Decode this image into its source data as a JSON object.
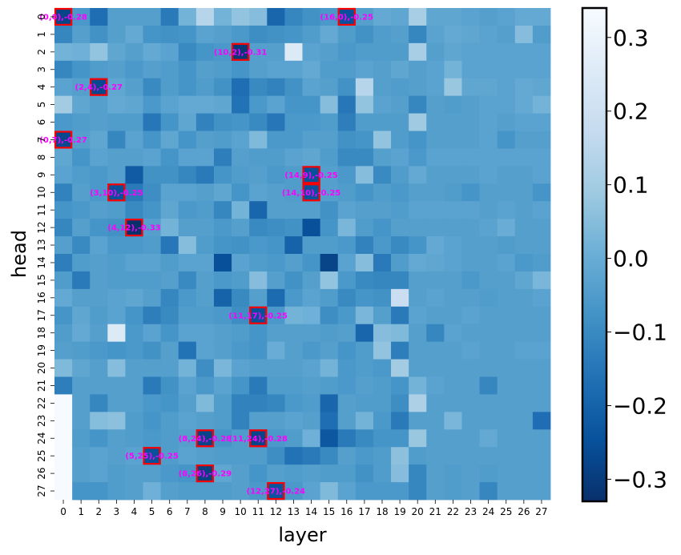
{
  "chart_data": {
    "type": "heatmap",
    "xlabel": "layer",
    "ylabel": "head",
    "n_layers": 28,
    "n_heads": 28,
    "x_ticks": [
      "0",
      "1",
      "2",
      "3",
      "4",
      "5",
      "6",
      "7",
      "8",
      "9",
      "10",
      "11",
      "12",
      "13",
      "14",
      "15",
      "16",
      "17",
      "18",
      "19",
      "20",
      "21",
      "22",
      "23",
      "24",
      "25",
      "26",
      "27"
    ],
    "y_ticks": [
      "0",
      "1",
      "2",
      "3",
      "4",
      "5",
      "6",
      "7",
      "8",
      "9",
      "10",
      "11",
      "12",
      "13",
      "14",
      "15",
      "16",
      "17",
      "18",
      "19",
      "20",
      "21",
      "22",
      "23",
      "24",
      "25",
      "26",
      "27"
    ],
    "vmin": -0.33,
    "vmax": 0.34,
    "colormap": "Blues_r",
    "colorbar_ticks": [
      {
        "value": 0.3,
        "label": "0.3"
      },
      {
        "value": 0.2,
        "label": "0.2"
      },
      {
        "value": 0.1,
        "label": "0.1"
      },
      {
        "value": 0.0,
        "label": "0.0"
      },
      {
        "value": -0.1,
        "label": "−0.1"
      },
      {
        "value": -0.2,
        "label": "−0.2"
      },
      {
        "value": -0.3,
        "label": "−0.3"
      }
    ],
    "annotation_color": "#ff00ff",
    "highlight_color": "#ff0000",
    "highlights": [
      {
        "layer": 0,
        "head": 0,
        "value": -0.28,
        "label": "(0,0),-0.28"
      },
      {
        "layer": 16,
        "head": 0,
        "value": -0.25,
        "label": "(16,0),-0.25"
      },
      {
        "layer": 10,
        "head": 2,
        "value": -0.31,
        "label": "(10,2),-0.31"
      },
      {
        "layer": 2,
        "head": 4,
        "value": -0.27,
        "label": "(2,4),-0.27"
      },
      {
        "layer": 0,
        "head": 7,
        "value": -0.27,
        "label": "(0,7),-0.27"
      },
      {
        "layer": 14,
        "head": 9,
        "value": -0.25,
        "label": "(14,9),-0.25"
      },
      {
        "layer": 3,
        "head": 10,
        "value": -0.25,
        "label": "(3,10),-0.25"
      },
      {
        "layer": 14,
        "head": 10,
        "value": -0.25,
        "label": "(14,10),-0.25"
      },
      {
        "layer": 4,
        "head": 12,
        "value": -0.33,
        "label": "(4,12),-0.33"
      },
      {
        "layer": 11,
        "head": 17,
        "value": -0.25,
        "label": "(11,17),-0.25"
      },
      {
        "layer": 8,
        "head": 24,
        "value": -0.28,
        "label": "(8,24),-0.28"
      },
      {
        "layer": 11,
        "head": 24,
        "value": -0.28,
        "label": "(11,24),-0.28"
      },
      {
        "layer": 5,
        "head": 25,
        "value": -0.25,
        "label": "(5,25),-0.25"
      },
      {
        "layer": 8,
        "head": 26,
        "value": -0.29,
        "label": "(8,26),-0.29"
      },
      {
        "layer": 12,
        "head": 27,
        "value": -0.24,
        "label": "(12,27),-0.24"
      }
    ],
    "values": [
      [
        -0.28,
        -0.06,
        -0.17,
        -0.04,
        -0.04,
        -0.04,
        -0.14,
        0.02,
        0.14,
        0.02,
        0.07,
        0.05,
        -0.19,
        -0.11,
        -0.08,
        -0.06,
        -0.25,
        -0.04,
        -0.01,
        -0.02,
        0.11,
        -0.02,
        -0.02,
        -0.03,
        -0.04,
        -0.03,
        -0.01,
        -0.01
      ],
      [
        -0.11,
        -0.04,
        -0.08,
        -0.04,
        -0.01,
        -0.07,
        -0.08,
        -0.07,
        -0.03,
        -0.04,
        -0.06,
        -0.09,
        -0.08,
        -0.07,
        -0.05,
        -0.01,
        -0.05,
        -0.08,
        -0.05,
        -0.04,
        -0.11,
        -0.03,
        -0.01,
        -0.02,
        -0.03,
        -0.04,
        0.05,
        -0.05
      ],
      [
        0.02,
        0.01,
        0.07,
        -0.02,
        -0.04,
        -0.01,
        -0.03,
        -0.1,
        -0.07,
        -0.06,
        -0.31,
        -0.04,
        -0.04,
        0.25,
        -0.03,
        -0.04,
        -0.06,
        -0.05,
        -0.05,
        -0.05,
        0.11,
        -0.04,
        -0.02,
        -0.03,
        -0.03,
        -0.03,
        -0.03,
        -0.03
      ],
      [
        -0.11,
        -0.07,
        -0.05,
        -0.04,
        -0.06,
        -0.04,
        -0.05,
        -0.07,
        -0.04,
        -0.05,
        -0.07,
        -0.04,
        -0.03,
        -0.03,
        -0.01,
        -0.05,
        -0.05,
        -0.03,
        -0.04,
        -0.02,
        -0.04,
        -0.03,
        0.02,
        -0.03,
        -0.03,
        -0.03,
        -0.03,
        -0.03
      ],
      [
        -0.03,
        -0.04,
        -0.27,
        -0.02,
        -0.04,
        -0.1,
        -0.05,
        -0.07,
        -0.05,
        -0.08,
        -0.17,
        -0.1,
        -0.12,
        -0.08,
        -0.03,
        -0.04,
        -0.08,
        0.14,
        -0.04,
        -0.05,
        -0.04,
        -0.03,
        0.08,
        -0.02,
        -0.02,
        -0.03,
        -0.01,
        -0.02
      ],
      [
        0.1,
        -0.02,
        -0.04,
        -0.01,
        -0.02,
        -0.06,
        -0.03,
        -0.01,
        -0.01,
        -0.02,
        -0.16,
        -0.06,
        -0.03,
        -0.07,
        -0.07,
        0.05,
        -0.15,
        0.07,
        -0.03,
        -0.04,
        -0.11,
        -0.04,
        -0.05,
        -0.04,
        -0.03,
        -0.03,
        -0.01,
        0.02
      ],
      [
        -0.06,
        -0.05,
        -0.04,
        -0.05,
        -0.05,
        -0.15,
        -0.07,
        -0.02,
        -0.12,
        -0.08,
        -0.07,
        -0.1,
        -0.15,
        -0.06,
        -0.06,
        -0.05,
        -0.13,
        -0.05,
        -0.05,
        -0.05,
        0.09,
        -0.04,
        -0.04,
        -0.04,
        -0.03,
        -0.04,
        -0.03,
        -0.03
      ],
      [
        -0.27,
        -0.04,
        -0.02,
        -0.11,
        -0.03,
        -0.07,
        -0.02,
        -0.07,
        -0.04,
        -0.05,
        -0.03,
        0.04,
        -0.06,
        -0.06,
        -0.04,
        -0.04,
        -0.08,
        -0.07,
        0.07,
        -0.05,
        -0.07,
        -0.04,
        -0.04,
        -0.04,
        -0.03,
        -0.07,
        -0.04,
        -0.04
      ],
      [
        -0.02,
        -0.07,
        -0.03,
        -0.04,
        -0.04,
        -0.03,
        -0.07,
        -0.03,
        -0.03,
        -0.13,
        -0.04,
        -0.05,
        -0.05,
        -0.03,
        -0.02,
        -0.05,
        -0.1,
        -0.1,
        -0.04,
        -0.03,
        -0.06,
        -0.03,
        -0.03,
        -0.03,
        -0.03,
        -0.03,
        -0.03,
        -0.03
      ],
      [
        -0.03,
        -0.05,
        -0.06,
        -0.04,
        -0.22,
        -0.08,
        -0.08,
        -0.11,
        -0.14,
        -0.07,
        -0.05,
        -0.04,
        -0.06,
        -0.05,
        -0.25,
        -0.04,
        -0.06,
        0.05,
        -0.1,
        -0.05,
        -0.01,
        -0.04,
        -0.04,
        -0.04,
        -0.03,
        -0.04,
        -0.04,
        -0.03
      ],
      [
        -0.12,
        -0.04,
        -0.06,
        -0.25,
        -0.14,
        -0.09,
        -0.03,
        -0.03,
        -0.04,
        -0.02,
        -0.07,
        -0.03,
        -0.04,
        -0.05,
        -0.25,
        -0.04,
        -0.05,
        -0.07,
        -0.05,
        -0.06,
        -0.04,
        -0.04,
        -0.05,
        -0.07,
        -0.04,
        -0.04,
        -0.04,
        -0.07
      ],
      [
        -0.07,
        -0.06,
        -0.04,
        -0.05,
        -0.1,
        -0.07,
        -0.02,
        -0.06,
        -0.05,
        -0.11,
        0.02,
        -0.19,
        -0.04,
        -0.04,
        -0.04,
        -0.08,
        -0.03,
        -0.04,
        -0.04,
        -0.05,
        -0.03,
        -0.03,
        -0.03,
        -0.03,
        -0.04,
        -0.03,
        -0.04,
        -0.03
      ],
      [
        -0.11,
        -0.04,
        -0.07,
        -0.08,
        -0.33,
        -0.04,
        0.02,
        -0.04,
        -0.04,
        -0.06,
        -0.04,
        -0.1,
        -0.09,
        -0.08,
        -0.25,
        -0.07,
        0.03,
        -0.05,
        -0.07,
        -0.04,
        -0.04,
        -0.04,
        -0.04,
        -0.04,
        -0.03,
        0.0,
        -0.04,
        -0.04
      ],
      [
        -0.04,
        -0.1,
        -0.03,
        -0.06,
        -0.06,
        -0.05,
        -0.15,
        0.05,
        -0.05,
        -0.07,
        -0.08,
        -0.06,
        -0.07,
        -0.2,
        -0.05,
        -0.05,
        -0.06,
        -0.12,
        -0.06,
        -0.1,
        -0.07,
        -0.01,
        -0.03,
        -0.04,
        -0.04,
        -0.05,
        -0.04,
        -0.04
      ],
      [
        -0.13,
        -0.05,
        -0.04,
        -0.05,
        -0.03,
        -0.03,
        -0.05,
        -0.03,
        -0.03,
        -0.25,
        -0.03,
        -0.05,
        -0.06,
        -0.04,
        -0.07,
        -0.28,
        -0.03,
        0.05,
        -0.14,
        -0.05,
        -0.01,
        -0.02,
        -0.03,
        -0.04,
        -0.04,
        -0.03,
        -0.06,
        -0.05
      ],
      [
        -0.05,
        -0.14,
        -0.04,
        -0.05,
        -0.05,
        -0.05,
        -0.04,
        -0.1,
        -0.04,
        -0.06,
        -0.05,
        0.05,
        -0.04,
        -0.08,
        -0.04,
        0.07,
        -0.06,
        -0.1,
        -0.11,
        -0.11,
        -0.04,
        -0.04,
        -0.04,
        -0.06,
        -0.04,
        -0.04,
        -0.02,
        0.03
      ],
      [
        -0.01,
        -0.04,
        -0.04,
        -0.03,
        -0.02,
        -0.04,
        -0.11,
        -0.06,
        -0.04,
        -0.2,
        -0.1,
        -0.04,
        -0.18,
        -0.06,
        -0.03,
        -0.05,
        -0.1,
        -0.07,
        -0.08,
        0.19,
        -0.04,
        -0.03,
        -0.04,
        -0.04,
        -0.05,
        -0.04,
        -0.04,
        -0.03
      ],
      [
        -0.07,
        -0.02,
        -0.05,
        -0.03,
        -0.07,
        -0.13,
        -0.1,
        -0.05,
        -0.05,
        -0.06,
        -0.09,
        -0.25,
        -0.06,
        0.02,
        0.01,
        -0.09,
        -0.06,
        0.03,
        -0.04,
        -0.14,
        -0.03,
        -0.04,
        -0.04,
        -0.03,
        -0.04,
        -0.04,
        -0.04,
        -0.04
      ],
      [
        -0.05,
        -0.01,
        -0.04,
        0.25,
        -0.06,
        -0.03,
        -0.07,
        -0.03,
        -0.03,
        -0.04,
        -0.05,
        -0.07,
        -0.04,
        -0.04,
        -0.04,
        -0.05,
        -0.04,
        -0.19,
        0.05,
        0.04,
        -0.04,
        -0.11,
        -0.03,
        -0.04,
        -0.04,
        -0.04,
        -0.04,
        -0.04
      ],
      [
        -0.04,
        -0.05,
        -0.06,
        -0.07,
        -0.06,
        -0.08,
        -0.04,
        -0.16,
        -0.03,
        -0.04,
        -0.06,
        -0.07,
        0.0,
        -0.04,
        -0.06,
        -0.04,
        -0.07,
        -0.05,
        0.07,
        -0.13,
        -0.04,
        -0.04,
        -0.04,
        -0.03,
        -0.04,
        -0.04,
        -0.03,
        -0.03
      ],
      [
        0.04,
        -0.02,
        -0.04,
        0.05,
        -0.04,
        -0.04,
        -0.04,
        0.02,
        -0.09,
        0.03,
        -0.03,
        -0.04,
        -0.04,
        -0.04,
        -0.03,
        0.02,
        -0.06,
        -0.05,
        -0.06,
        0.1,
        -0.04,
        -0.04,
        -0.04,
        -0.04,
        -0.04,
        -0.04,
        -0.04,
        -0.04
      ],
      [
        -0.13,
        -0.04,
        -0.04,
        -0.04,
        -0.04,
        -0.14,
        -0.08,
        -0.03,
        -0.06,
        -0.03,
        -0.07,
        -0.14,
        -0.05,
        -0.05,
        -0.04,
        -0.05,
        -0.06,
        -0.04,
        -0.05,
        -0.07,
        0.02,
        -0.03,
        -0.04,
        -0.04,
        -0.11,
        -0.04,
        -0.04,
        -0.04
      ],
      [
        0.34,
        -0.04,
        -0.11,
        -0.04,
        -0.04,
        -0.06,
        -0.07,
        -0.04,
        0.04,
        -0.05,
        -0.12,
        -0.12,
        -0.11,
        -0.06,
        -0.05,
        -0.19,
        -0.04,
        -0.05,
        -0.05,
        -0.09,
        0.12,
        -0.04,
        -0.04,
        -0.04,
        -0.04,
        -0.04,
        -0.04,
        -0.04
      ],
      [
        0.34,
        -0.04,
        0.05,
        0.06,
        -0.05,
        -0.07,
        -0.05,
        -0.03,
        -0.04,
        -0.05,
        -0.12,
        -0.04,
        -0.04,
        -0.03,
        -0.04,
        -0.17,
        -0.04,
        0.02,
        -0.06,
        -0.14,
        -0.04,
        -0.04,
        0.03,
        -0.04,
        -0.04,
        -0.04,
        -0.04,
        -0.17
      ],
      [
        0.34,
        -0.05,
        -0.07,
        -0.04,
        -0.05,
        -0.06,
        -0.05,
        -0.04,
        -0.28,
        -0.07,
        -0.05,
        -0.28,
        -0.06,
        -0.05,
        0.01,
        -0.23,
        -0.14,
        -0.1,
        -0.07,
        -0.07,
        0.08,
        -0.04,
        -0.04,
        -0.04,
        -0.01,
        -0.04,
        -0.04,
        -0.04
      ],
      [
        0.34,
        -0.04,
        -0.03,
        -0.04,
        -0.03,
        -0.25,
        -0.05,
        -0.03,
        -0.04,
        -0.05,
        -0.05,
        -0.05,
        -0.09,
        -0.16,
        -0.14,
        -0.1,
        -0.04,
        -0.06,
        -0.05,
        0.06,
        -0.05,
        -0.04,
        -0.04,
        -0.04,
        -0.04,
        -0.04,
        -0.04,
        -0.04
      ],
      [
        0.34,
        -0.04,
        -0.03,
        -0.05,
        -0.04,
        -0.04,
        -0.06,
        -0.07,
        -0.29,
        -0.02,
        -0.04,
        -0.07,
        -0.04,
        -0.05,
        -0.04,
        -0.05,
        -0.05,
        -0.08,
        -0.05,
        0.05,
        -0.11,
        -0.04,
        -0.05,
        -0.04,
        -0.05,
        -0.04,
        -0.04,
        -0.04
      ],
      [
        0.34,
        -0.07,
        -0.07,
        -0.05,
        -0.04,
        0.01,
        -0.04,
        -0.05,
        -0.05,
        -0.05,
        -0.04,
        -0.06,
        -0.24,
        -0.06,
        -0.03,
        0.04,
        -0.03,
        -0.06,
        -0.06,
        -0.06,
        -0.11,
        -0.04,
        -0.05,
        -0.04,
        -0.11,
        -0.04,
        -0.04,
        -0.04
      ]
    ]
  }
}
